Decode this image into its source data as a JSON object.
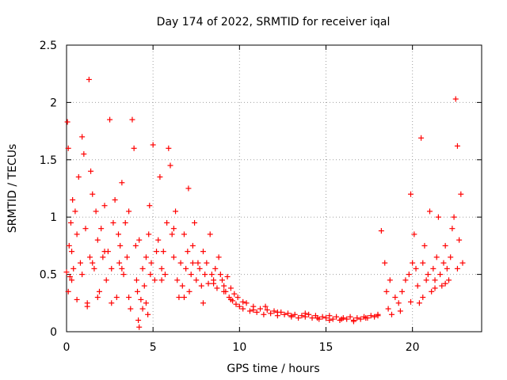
{
  "colors": {
    "points": "#ff0000"
  },
  "chart_data": {
    "type": "scatter",
    "title": "Day 174 of 2022, SRMTID for receiver iqal",
    "xlabel": "GPS time / hours",
    "ylabel": "SRMTID / TECUs",
    "xlim": [
      0,
      24
    ],
    "ylim": [
      0,
      2.5
    ],
    "xticks": [
      0,
      5,
      10,
      15,
      20
    ],
    "xtick_labels": [
      "0",
      "5",
      "10",
      "15",
      "20"
    ],
    "yticks": [
      0,
      0.5,
      1,
      1.5,
      2,
      2.5
    ],
    "ytick_labels": [
      "0",
      "0.5",
      "1",
      "1.5",
      "2",
      "2.5"
    ],
    "grid": true,
    "marker": "+",
    "series": [
      {
        "name": "iqal",
        "x": [
          0.0,
          0.05,
          0.1,
          0.15,
          0.2,
          0.25,
          0.3,
          0.35,
          0.4,
          0.5,
          0.6,
          0.7,
          0.8,
          0.9,
          1.0,
          1.1,
          1.2,
          1.3,
          1.35,
          1.4,
          1.5,
          1.6,
          1.7,
          1.8,
          1.9,
          2.0,
          2.1,
          2.2,
          2.3,
          2.4,
          2.5,
          2.6,
          2.7,
          2.8,
          2.9,
          3.0,
          3.05,
          3.1,
          3.2,
          3.3,
          3.4,
          3.5,
          3.6,
          3.7,
          3.8,
          3.9,
          4.0,
          4.05,
          4.1,
          4.15,
          4.2,
          4.3,
          4.4,
          4.5,
          4.6,
          4.7,
          4.75,
          4.8,
          4.85,
          4.9,
          5.0,
          5.1,
          5.2,
          5.3,
          5.4,
          5.5,
          5.6,
          5.7,
          5.8,
          5.9,
          6.0,
          6.1,
          6.2,
          6.3,
          6.4,
          6.5,
          6.6,
          6.7,
          6.8,
          6.9,
          7.0,
          7.05,
          7.1,
          7.2,
          7.3,
          7.4,
          7.5,
          7.6,
          7.7,
          7.8,
          7.9,
          8.0,
          8.1,
          8.2,
          8.3,
          8.4,
          8.5,
          8.6,
          8.7,
          8.8,
          8.9,
          9.0,
          9.1,
          9.2,
          9.3,
          9.4,
          9.5,
          9.6,
          9.7,
          9.8,
          9.9,
          10.0,
          10.2,
          10.4,
          10.6,
          10.8,
          11.0,
          11.2,
          11.4,
          11.6,
          11.8,
          12.0,
          12.2,
          12.4,
          12.6,
          12.8,
          13.0,
          13.2,
          13.4,
          13.6,
          13.8,
          14.0,
          14.2,
          14.4,
          14.6,
          14.8,
          15.0,
          15.2,
          15.4,
          15.6,
          15.8,
          16.0,
          16.2,
          16.4,
          16.6,
          16.8,
          17.0,
          17.2,
          17.4,
          17.6,
          17.8,
          18.0,
          18.2,
          18.4,
          18.5,
          18.6,
          18.8,
          19.0,
          19.2,
          19.4,
          19.6,
          19.8,
          19.9,
          20.0,
          20.1,
          20.2,
          20.3,
          20.4,
          20.5,
          20.6,
          20.7,
          20.8,
          20.9,
          21.0,
          21.1,
          21.2,
          21.3,
          21.4,
          21.5,
          21.6,
          21.7,
          21.8,
          21.9,
          22.0,
          22.1,
          22.2,
          22.3,
          22.4,
          22.5,
          22.6,
          22.7,
          22.8,
          22.9
        ],
        "y": [
          0.52,
          1.83,
          1.6,
          0.75,
          0.48,
          0.95,
          0.7,
          1.15,
          0.55,
          1.05,
          0.85,
          1.35,
          0.6,
          1.7,
          1.55,
          0.9,
          0.25,
          2.2,
          0.65,
          1.4,
          1.2,
          0.55,
          1.05,
          0.8,
          0.35,
          0.9,
          0.65,
          1.1,
          0.45,
          0.7,
          1.85,
          0.55,
          0.95,
          1.15,
          0.3,
          0.85,
          0.6,
          0.75,
          1.3,
          0.5,
          0.95,
          0.65,
          1.05,
          0.2,
          1.85,
          1.6,
          0.75,
          0.45,
          0.35,
          0.1,
          0.04,
          0.28,
          0.55,
          0.4,
          0.65,
          0.15,
          0.85,
          1.1,
          0.5,
          0.6,
          1.63,
          0.45,
          0.7,
          0.8,
          1.35,
          0.55,
          0.7,
          0.5,
          0.95,
          1.6,
          1.45,
          0.85,
          0.65,
          1.05,
          0.45,
          0.3,
          0.6,
          0.4,
          0.85,
          0.55,
          0.7,
          1.25,
          0.35,
          0.5,
          0.75,
          0.95,
          0.45,
          0.6,
          0.55,
          0.4,
          0.7,
          0.5,
          0.6,
          0.42,
          0.85,
          0.5,
          0.45,
          0.55,
          0.38,
          0.65,
          0.5,
          0.45,
          0.4,
          0.35,
          0.48,
          0.3,
          0.38,
          0.27,
          0.33,
          0.24,
          0.3,
          0.22,
          0.2,
          0.25,
          0.18,
          0.22,
          0.17,
          0.2,
          0.15,
          0.19,
          0.16,
          0.18,
          0.14,
          0.17,
          0.15,
          0.16,
          0.13,
          0.15,
          0.12,
          0.14,
          0.13,
          0.15,
          0.12,
          0.14,
          0.11,
          0.13,
          0.12,
          0.14,
          0.11,
          0.13,
          0.1,
          0.12,
          0.11,
          0.13,
          0.1,
          0.12,
          0.11,
          0.13,
          0.12,
          0.14,
          0.13,
          0.15,
          0.88,
          0.6,
          0.35,
          0.2,
          0.15,
          0.3,
          0.25,
          0.35,
          0.45,
          0.5,
          1.2,
          0.6,
          0.85,
          0.55,
          0.4,
          0.25,
          1.69,
          0.6,
          0.75,
          0.45,
          0.5,
          1.05,
          0.35,
          0.55,
          0.45,
          0.65,
          1.0,
          0.5,
          0.4,
          0.6,
          0.75,
          0.55,
          0.45,
          0.65,
          0.9,
          1.0,
          2.03,
          1.62,
          0.8,
          1.2,
          0.6
        ],
        "aux": {
          "x": [
            0.1,
            0.3,
            0.6,
            0.9,
            1.2,
            1.5,
            1.8,
            2.2,
            2.6,
            3.2,
            3.6,
            4.2,
            4.4,
            4.6,
            5.5,
            6.2,
            6.8,
            7.3,
            7.9,
            8.5,
            9.1,
            9.5,
            10.2,
            10.8,
            11.5,
            12.2,
            13.0,
            13.8,
            14.5,
            15.2,
            15.9,
            16.6,
            17.3,
            18.0,
            18.7,
            19.3,
            19.9,
            20.6,
            21.3,
            21.9,
            22.6
          ],
          "y": [
            0.35,
            0.45,
            0.28,
            0.5,
            0.22,
            0.6,
            0.3,
            0.7,
            0.25,
            0.55,
            0.3,
            0.8,
            0.2,
            0.25,
            0.45,
            0.9,
            0.3,
            0.6,
            0.25,
            0.42,
            0.35,
            0.28,
            0.26,
            0.19,
            0.22,
            0.17,
            0.14,
            0.16,
            0.12,
            0.1,
            0.11,
            0.09,
            0.12,
            0.14,
            0.45,
            0.18,
            0.26,
            0.3,
            0.38,
            0.42,
            0.55
          ]
        }
      }
    ]
  }
}
